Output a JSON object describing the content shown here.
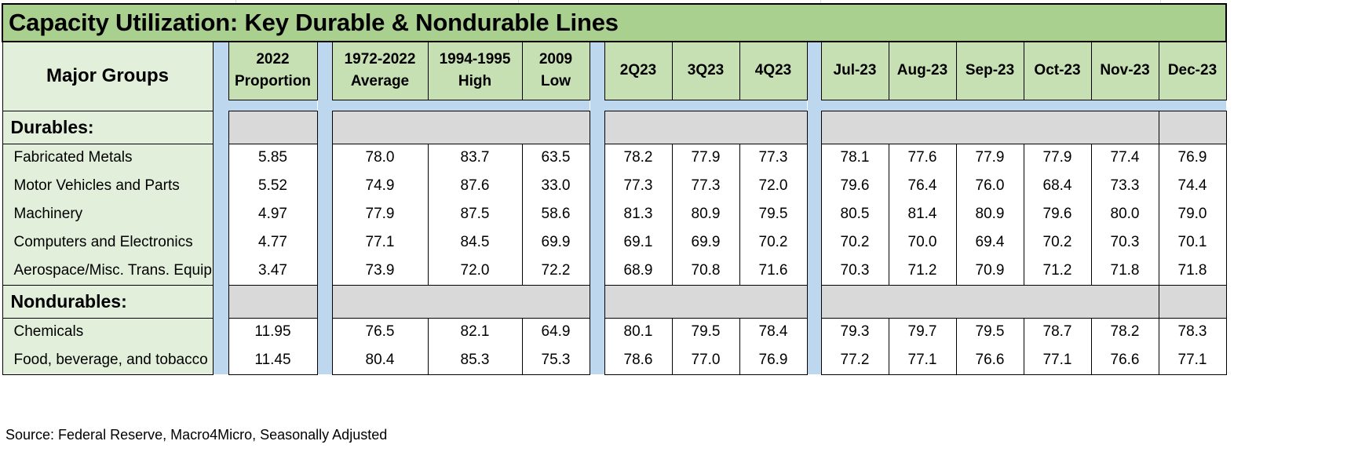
{
  "title": "Capacity Utilization: Key Durable & Nondurable Lines",
  "headers": {
    "major_groups": "Major Groups",
    "proportion": "2022 Proportion",
    "average": "1972-2022 Average",
    "high": "1994-1995 High",
    "low": "2009 Low",
    "q2": "2Q23",
    "q3": "3Q23",
    "q4": "4Q23",
    "jul": "Jul-23",
    "aug": "Aug-23",
    "sep": "Sep-23",
    "oct": "Oct-23",
    "nov": "Nov-23",
    "dec": "Dec-23"
  },
  "durables": {
    "label": "Durables:",
    "rows": [
      {
        "name": "Fabricated Metals",
        "values": [
          "5.85",
          "78.0",
          "83.7",
          "63.5",
          "78.2",
          "77.9",
          "77.3",
          "78.1",
          "77.6",
          "77.9",
          "77.9",
          "77.4",
          "76.9"
        ]
      },
      {
        "name": "Motor Vehicles and Parts",
        "values": [
          "5.52",
          "74.9",
          "87.6",
          "33.0",
          "77.3",
          "77.3",
          "72.0",
          "79.6",
          "76.4",
          "76.0",
          "68.4",
          "73.3",
          "74.4"
        ]
      },
      {
        "name": "Machinery",
        "values": [
          "4.97",
          "77.9",
          "87.5",
          "58.6",
          "81.3",
          "80.9",
          "79.5",
          "80.5",
          "81.4",
          "80.9",
          "79.6",
          "80.0",
          "79.0"
        ]
      },
      {
        "name": "Computers and Electronics",
        "values": [
          "4.77",
          "77.1",
          "84.5",
          "69.9",
          "69.1",
          "69.9",
          "70.2",
          "70.2",
          "70.0",
          "69.4",
          "70.2",
          "70.3",
          "70.1"
        ]
      },
      {
        "name": "Aerospace/Misc. Trans. Equip",
        "values": [
          "3.47",
          "73.9",
          "72.0",
          "72.2",
          "68.9",
          "70.8",
          "71.6",
          "70.3",
          "71.2",
          "70.9",
          "71.2",
          "71.8",
          "71.8"
        ]
      }
    ]
  },
  "nondurables": {
    "label": "Nondurables:",
    "rows": [
      {
        "name": "Chemicals",
        "values": [
          "11.95",
          "76.5",
          "82.1",
          "64.9",
          "80.1",
          "79.5",
          "78.4",
          "79.3",
          "79.7",
          "79.5",
          "78.7",
          "78.2",
          "78.3"
        ]
      },
      {
        "name": "Food, beverage, and tobacco",
        "values": [
          "11.45",
          "80.4",
          "85.3",
          "75.3",
          "78.6",
          "77.0",
          "76.9",
          "77.2",
          "77.1",
          "76.6",
          "77.1",
          "76.6",
          "77.1"
        ]
      }
    ]
  },
  "source": "Source: Federal Reserve, Macro4Micro, Seasonally Adjusted",
  "colors": {
    "title_bg": "#a9d08e",
    "header_bg": "#c6e0b4",
    "label_bg": "#e2efda",
    "spacer_bg": "#bdd7ee",
    "section_fill": "#d9d9d9"
  }
}
